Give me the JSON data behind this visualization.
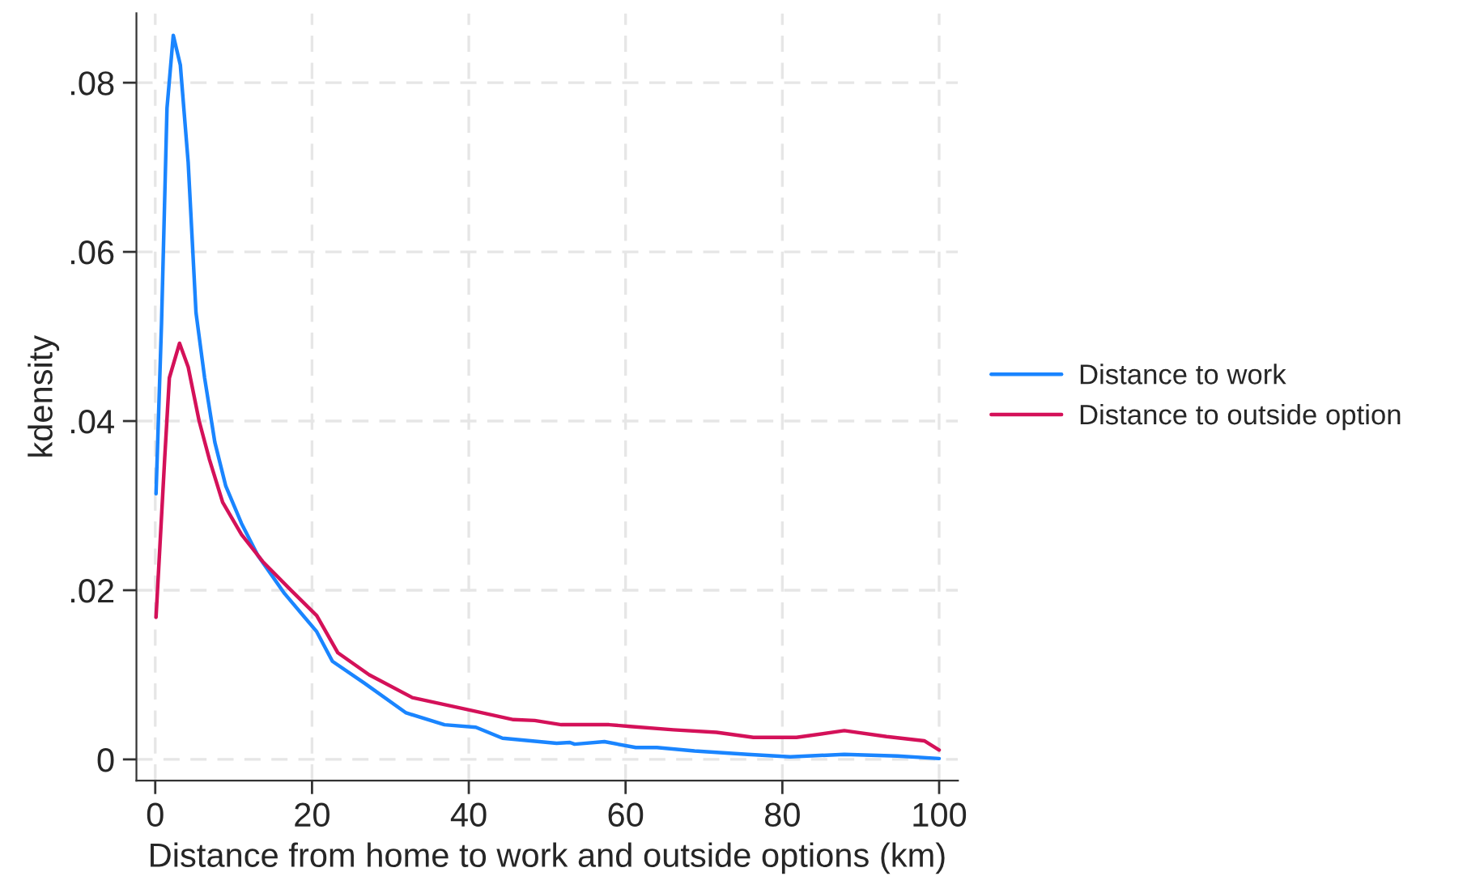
{
  "chart_data": {
    "type": "line",
    "xlabel": "Distance from home to work and outside options (km)",
    "ylabel": "kdensity",
    "xlim": [
      -2.4,
      102.4
    ],
    "xticks": [
      0,
      20,
      40,
      60,
      80,
      100
    ],
    "ylim": [
      -0.0025,
      0.0882
    ],
    "yticks": [
      {
        "value": 0,
        "label": "0"
      },
      {
        "value": 0.02,
        "label": ".02"
      },
      {
        "value": 0.04,
        "label": ".04"
      },
      {
        "value": 0.06,
        "label": ".06"
      },
      {
        "value": 0.08,
        "label": ".08"
      }
    ],
    "grid": true,
    "legend": "right",
    "line_style": "solid",
    "marker": "none",
    "series": [
      {
        "name": "Distance to work",
        "color": "#1a85ff",
        "x": [
          0.1,
          0.8,
          1.5,
          2.3,
          3.2,
          4.2,
          5.2,
          6.3,
          7.6,
          9.0,
          11.0,
          13.1,
          16.5,
          20.6,
          22.6,
          26.7,
          32.0,
          36.9,
          40.9,
          44.3,
          51.2,
          52.9,
          53.5,
          57.3,
          61.3,
          64.0,
          68.8,
          75.6,
          81.0,
          87.9,
          94.7,
          100
        ],
        "values": [
          0.0314,
          0.0515,
          0.077,
          0.0856,
          0.0821,
          0.0706,
          0.0528,
          0.0451,
          0.0375,
          0.0323,
          0.0279,
          0.0241,
          0.0196,
          0.0151,
          0.0116,
          0.009,
          0.0055,
          0.0041,
          0.0038,
          0.0025,
          0.0019,
          0.002,
          0.0018,
          0.0021,
          0.0014,
          0.0014,
          0.001,
          0.0006,
          0.0003,
          0.0006,
          0.0004,
          0.0001
        ]
      },
      {
        "name": "Distance to outside option",
        "color": "#d41159",
        "x": [
          0.1,
          1.2,
          1.8,
          3.1,
          4.2,
          5.6,
          6.9,
          8.6,
          11.0,
          13.7,
          17.1,
          20.6,
          23.3,
          27.3,
          32.8,
          40.3,
          45.7,
          48.4,
          51.8,
          57.9,
          60.6,
          66.1,
          71.6,
          76.3,
          81.8,
          87.9,
          93.3,
          98.1,
          100
        ],
        "values": [
          0.0168,
          0.0355,
          0.0451,
          0.0492,
          0.0464,
          0.04,
          0.0355,
          0.0304,
          0.0266,
          0.0234,
          0.0202,
          0.017,
          0.0126,
          0.01,
          0.0073,
          0.0058,
          0.0047,
          0.0046,
          0.0041,
          0.0041,
          0.0039,
          0.0035,
          0.0032,
          0.0026,
          0.0026,
          0.0034,
          0.0027,
          0.0022,
          0.0011
        ]
      }
    ]
  }
}
